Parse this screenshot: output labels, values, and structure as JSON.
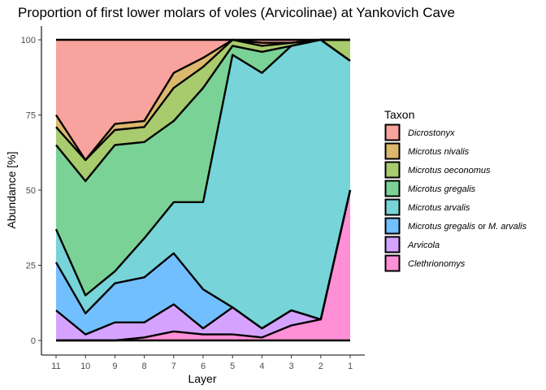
{
  "chart_data": {
    "type": "area",
    "stacked": true,
    "title": "Proportion of first lower molars of voles (Arvicolinae) at Yankovich Cave",
    "xlabel": "Layer",
    "ylabel": "Abundance [%]",
    "categories": [
      "11",
      "10",
      "9",
      "8",
      "7",
      "6",
      "5",
      "4",
      "3",
      "2",
      "1"
    ],
    "ylim": [
      0,
      100
    ],
    "yticks": [
      0,
      25,
      50,
      75,
      100
    ],
    "grid": false,
    "legend": {
      "title": "Taxon",
      "position": "right"
    },
    "series": [
      {
        "name": "Clethrionomys",
        "color": "#FF8FD6",
        "values": [
          0,
          0,
          0,
          1,
          3,
          2,
          2,
          1,
          5,
          7,
          50
        ]
      },
      {
        "name": "Arvicola",
        "color": "#D5A3FF",
        "values": [
          10,
          2,
          6,
          5,
          9,
          2,
          9,
          3,
          5,
          0,
          0
        ]
      },
      {
        "name": "Microtus gregalis or M. arvalis",
        "label_parts": [
          "Microtus gregalis",
          " or ",
          "M. arvalis"
        ],
        "color": "#72BFFF",
        "values": [
          16,
          7,
          13,
          15,
          17,
          13,
          0,
          0,
          0,
          0,
          0
        ]
      },
      {
        "name": "Microtus arvalis",
        "color": "#77D4D8",
        "values": [
          11,
          6,
          4,
          13,
          17,
          29,
          84,
          85,
          88,
          93,
          43
        ]
      },
      {
        "name": "Microtus gregalis",
        "color": "#7AD296",
        "values": [
          28,
          38,
          42,
          32,
          27,
          38,
          3,
          7,
          0,
          0,
          0
        ]
      },
      {
        "name": "Microtus oeconomus",
        "color": "#A8CB6D",
        "values": [
          6,
          7,
          5,
          5,
          11,
          7,
          2,
          2,
          1,
          0,
          7
        ]
      },
      {
        "name": "Microtus nivalis",
        "color": "#DCB86E",
        "values": [
          4,
          0,
          2,
          2,
          5,
          3,
          0,
          1,
          0,
          0,
          0
        ]
      },
      {
        "name": "Dicrostonyx",
        "color": "#F8A39D",
        "values": [
          25,
          40,
          28,
          27,
          11,
          6,
          0,
          1,
          1,
          0,
          0
        ]
      }
    ]
  }
}
